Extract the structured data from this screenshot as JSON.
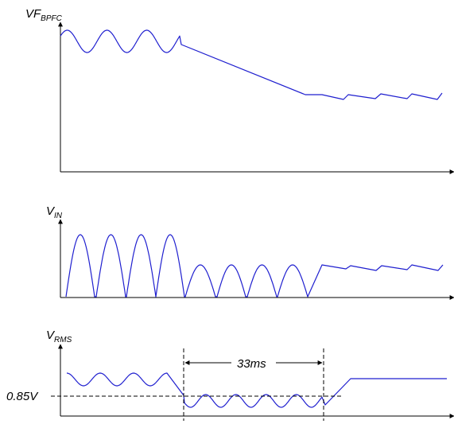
{
  "panels": [
    {
      "id": "vf",
      "label_main": "VF",
      "label_sub": "BPFC"
    },
    {
      "id": "vin",
      "label_main": "V",
      "label_sub": "IN"
    },
    {
      "id": "vrms",
      "label_main": "V",
      "label_sub": "RMS"
    }
  ],
  "annotations": {
    "duration": "33ms",
    "threshold": "0.85V"
  },
  "colors": {
    "waveform": "#1f1fcf",
    "axis": "#000000"
  }
}
